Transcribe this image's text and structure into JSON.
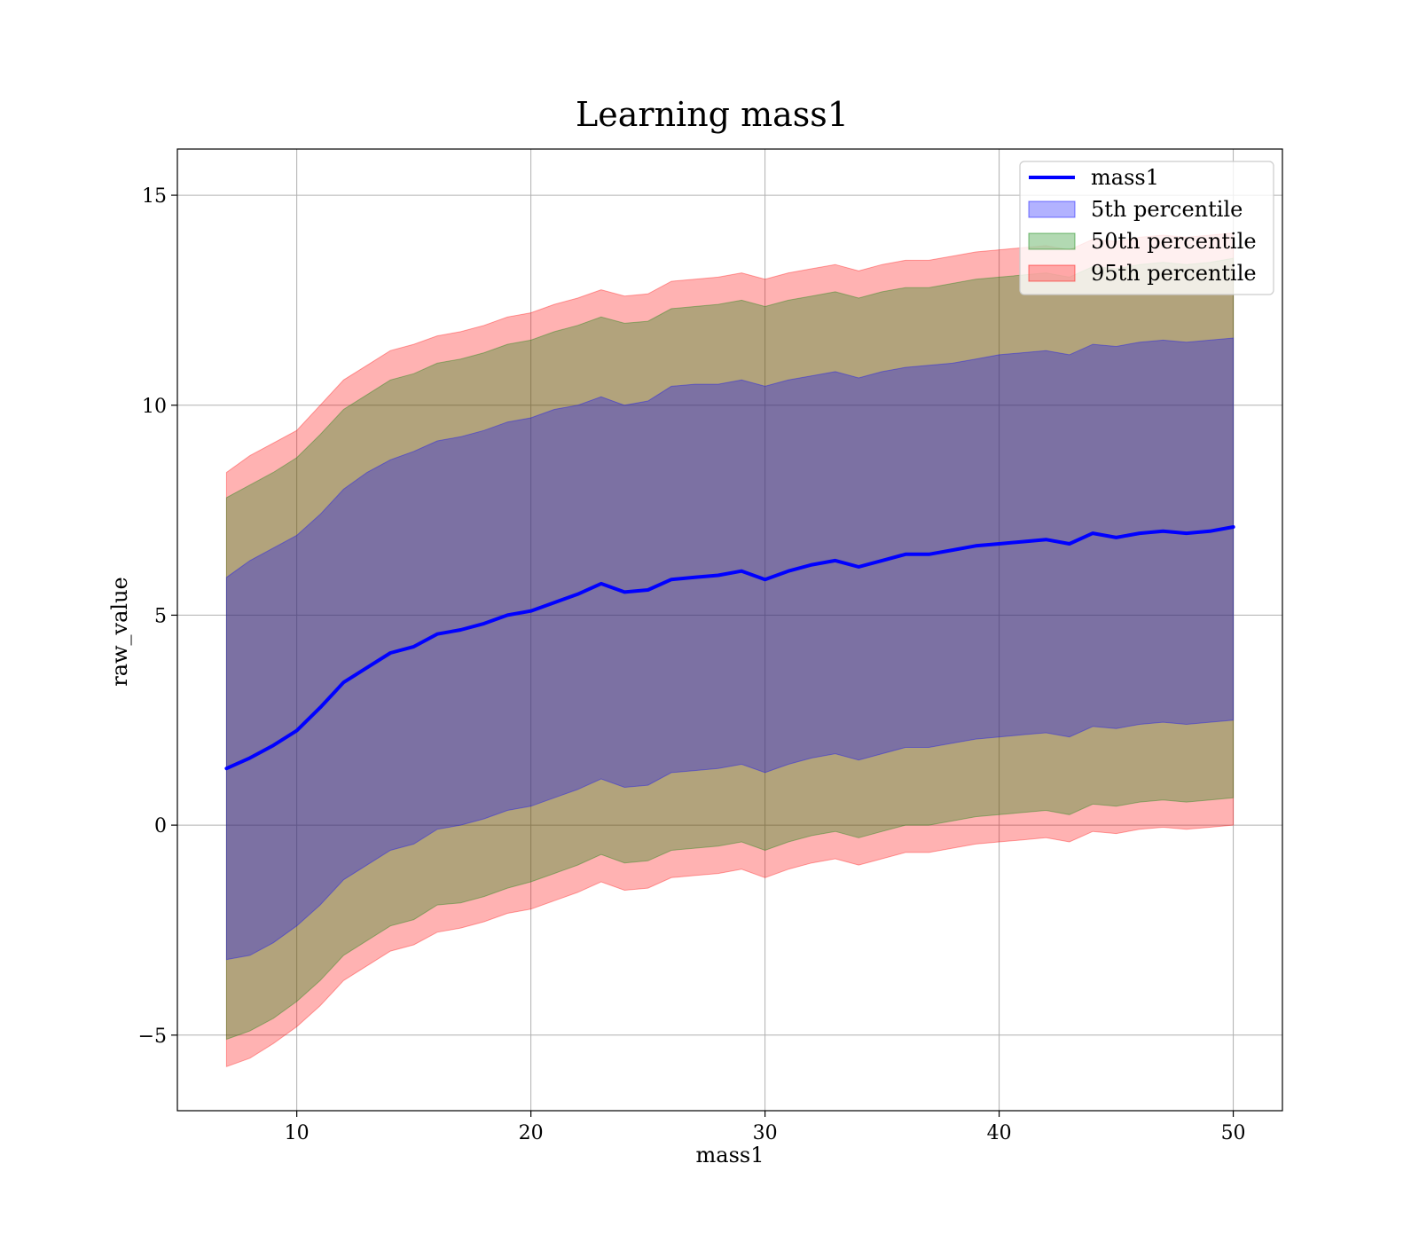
{
  "chart_data": {
    "type": "line",
    "title": "Learning mass1",
    "xlabel": "mass1",
    "ylabel": "raw_value",
    "xlim": [
      4.9,
      52.1
    ],
    "ylim": [
      -6.8,
      16.1
    ],
    "xticks": [
      10,
      20,
      30,
      40,
      50
    ],
    "xtick_labels": [
      "10",
      "20",
      "30",
      "40",
      "50"
    ],
    "yticks": [
      -5,
      0,
      5,
      10,
      15
    ],
    "ytick_labels": [
      "−5",
      "0",
      "5",
      "10",
      "15"
    ],
    "grid": true,
    "legend_position": "top-right",
    "legend": [
      {
        "label": "mass1",
        "kind": "line",
        "color": "#0000ff"
      },
      {
        "label": "5th percentile",
        "kind": "patch",
        "color": "#0000ff"
      },
      {
        "label": "50th percentile",
        "kind": "patch",
        "color": "#008000"
      },
      {
        "label": "95th percentile",
        "kind": "patch",
        "color": "#ff0000"
      }
    ],
    "x": [
      7,
      8,
      9,
      10,
      11,
      12,
      13,
      14,
      15,
      16,
      17,
      18,
      19,
      20,
      21,
      22,
      23,
      24,
      25,
      26,
      27,
      28,
      29,
      30,
      31,
      32,
      33,
      34,
      35,
      36,
      37,
      38,
      39,
      40,
      41,
      42,
      43,
      44,
      45,
      46,
      47,
      48,
      49,
      50
    ],
    "series": [
      {
        "name": "mass1",
        "kind": "line",
        "color": "#0000ff",
        "values": [
          1.35,
          1.6,
          1.9,
          2.25,
          2.8,
          3.4,
          3.75,
          4.1,
          4.25,
          4.55,
          4.65,
          4.8,
          5.0,
          5.1,
          5.3,
          5.5,
          5.75,
          5.55,
          5.6,
          5.85,
          5.9,
          5.95,
          6.05,
          5.85,
          6.05,
          6.2,
          6.3,
          6.15,
          6.3,
          6.45,
          6.45,
          6.55,
          6.65,
          6.7,
          6.75,
          6.8,
          6.7,
          6.95,
          6.85,
          6.95,
          7.0,
          6.95,
          7.0,
          7.1
        ]
      },
      {
        "name": "5th percentile",
        "kind": "band",
        "color": "#0000ff",
        "upper": [
          5.9,
          6.3,
          6.6,
          6.9,
          7.4,
          8.0,
          8.4,
          8.7,
          8.9,
          9.15,
          9.25,
          9.4,
          9.6,
          9.7,
          9.9,
          10.0,
          10.2,
          10.0,
          10.1,
          10.45,
          10.5,
          10.5,
          10.6,
          10.45,
          10.6,
          10.7,
          10.8,
          10.65,
          10.8,
          10.9,
          10.95,
          11.0,
          11.1,
          11.2,
          11.25,
          11.3,
          11.2,
          11.45,
          11.4,
          11.5,
          11.55,
          11.5,
          11.55,
          11.6
        ],
        "lower": [
          -3.2,
          -3.1,
          -2.8,
          -2.4,
          -1.9,
          -1.3,
          -0.95,
          -0.6,
          -0.45,
          -0.1,
          0.0,
          0.15,
          0.35,
          0.45,
          0.65,
          0.85,
          1.1,
          0.9,
          0.95,
          1.25,
          1.3,
          1.35,
          1.45,
          1.25,
          1.45,
          1.6,
          1.7,
          1.55,
          1.7,
          1.85,
          1.85,
          1.95,
          2.05,
          2.1,
          2.15,
          2.2,
          2.1,
          2.35,
          2.3,
          2.4,
          2.45,
          2.4,
          2.45,
          2.5
        ]
      },
      {
        "name": "50th percentile",
        "kind": "band",
        "color": "#008000",
        "upper": [
          7.8,
          8.1,
          8.4,
          8.75,
          9.3,
          9.9,
          10.25,
          10.6,
          10.75,
          11.0,
          11.1,
          11.25,
          11.45,
          11.55,
          11.75,
          11.9,
          12.1,
          11.95,
          12.0,
          12.3,
          12.35,
          12.4,
          12.5,
          12.35,
          12.5,
          12.6,
          12.7,
          12.55,
          12.7,
          12.8,
          12.8,
          12.9,
          13.0,
          13.05,
          13.1,
          13.15,
          13.05,
          13.3,
          13.25,
          13.35,
          13.4,
          13.35,
          13.4,
          13.5
        ],
        "lower": [
          -5.1,
          -4.9,
          -4.6,
          -4.2,
          -3.7,
          -3.1,
          -2.75,
          -2.4,
          -2.25,
          -1.9,
          -1.85,
          -1.7,
          -1.5,
          -1.35,
          -1.15,
          -0.95,
          -0.7,
          -0.9,
          -0.85,
          -0.6,
          -0.55,
          -0.5,
          -0.4,
          -0.6,
          -0.4,
          -0.25,
          -0.15,
          -0.3,
          -0.15,
          0.0,
          0.0,
          0.1,
          0.2,
          0.25,
          0.3,
          0.35,
          0.25,
          0.5,
          0.45,
          0.55,
          0.6,
          0.55,
          0.6,
          0.65
        ]
      },
      {
        "name": "95th percentile",
        "kind": "band",
        "color": "#ff0000",
        "upper": [
          8.4,
          8.8,
          9.1,
          9.4,
          10.0,
          10.6,
          10.95,
          11.3,
          11.45,
          11.65,
          11.75,
          11.9,
          12.1,
          12.2,
          12.4,
          12.55,
          12.75,
          12.6,
          12.65,
          12.95,
          13.0,
          13.05,
          13.15,
          13.0,
          13.15,
          13.25,
          13.35,
          13.2,
          13.35,
          13.45,
          13.45,
          13.55,
          13.65,
          13.7,
          13.75,
          13.8,
          13.7,
          13.95,
          13.9,
          14.0,
          14.05,
          14.0,
          14.05,
          14.1
        ],
        "lower": [
          -5.75,
          -5.55,
          -5.2,
          -4.8,
          -4.3,
          -3.7,
          -3.35,
          -3.0,
          -2.85,
          -2.55,
          -2.45,
          -2.3,
          -2.1,
          -2.0,
          -1.8,
          -1.6,
          -1.35,
          -1.55,
          -1.5,
          -1.25,
          -1.2,
          -1.15,
          -1.05,
          -1.25,
          -1.05,
          -0.9,
          -0.8,
          -0.95,
          -0.8,
          -0.65,
          -0.65,
          -0.55,
          -0.45,
          -0.4,
          -0.35,
          -0.3,
          -0.4,
          -0.15,
          -0.2,
          -0.1,
          -0.05,
          -0.1,
          -0.05,
          0.0
        ]
      }
    ]
  }
}
